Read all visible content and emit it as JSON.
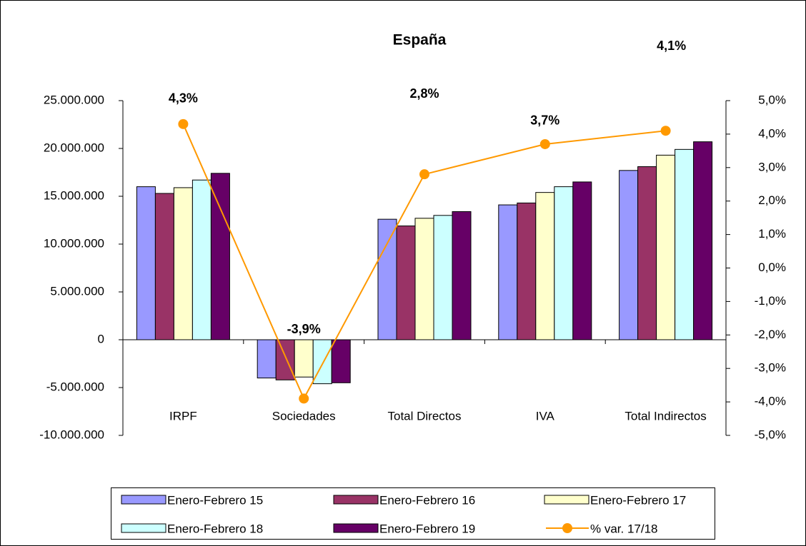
{
  "chart_data": {
    "type": "bar",
    "title": "España",
    "categories": [
      "IRPF",
      "Sociedades",
      "Total Directos",
      "IVA",
      "Total Indirectos"
    ],
    "series": [
      {
        "name": "Enero-Febrero 15",
        "color": "#9999ff",
        "values": [
          16000000,
          -4000000,
          12600000,
          14100000,
          17700000
        ]
      },
      {
        "name": "Enero-Febrero 16",
        "color": "#993366",
        "values": [
          15300000,
          -4200000,
          11900000,
          14300000,
          18100000
        ]
      },
      {
        "name": "Enero-Febrero 17",
        "color": "#ffffcc",
        "values": [
          15900000,
          -3900000,
          12700000,
          15400000,
          19300000
        ]
      },
      {
        "name": "Enero-Febrero 18",
        "color": "#ccffff",
        "values": [
          16700000,
          -4600000,
          13000000,
          16000000,
          19900000
        ]
      },
      {
        "name": "Enero-Febrero 19",
        "color": "#660066",
        "values": [
          17400000,
          -4500000,
          13400000,
          16500000,
          20700000
        ]
      },
      {
        "name": "% var. 17/18",
        "color": "#ff9900",
        "type": "line",
        "axis": "y2",
        "values": [
          4.3,
          -3.9,
          2.8,
          3.7,
          4.1
        ],
        "value_labels": [
          "4,3%",
          "-3,9%",
          "2,8%",
          "3,7%",
          "4,1%"
        ]
      }
    ],
    "ylim": [
      -10000000,
      25000000
    ],
    "yticks": [
      {
        "value": -10000000,
        "label": "-10.000.000"
      },
      {
        "value": -5000000,
        "label": "-5.000.000"
      },
      0,
      {
        "value": 5000000,
        "label": "5.000.000"
      },
      {
        "value": 10000000,
        "label": "10.000.000"
      },
      {
        "value": 15000000,
        "label": "15.000.000"
      },
      {
        "value": 20000000,
        "label": "20.000.000"
      },
      {
        "value": 25000000,
        "label": "25.000.000"
      }
    ],
    "y2lim": [
      -5,
      5
    ],
    "y2ticks": [
      {
        "value": -5,
        "label": "-5,0%"
      },
      {
        "value": -4,
        "label": "-4,0%"
      },
      {
        "value": -3,
        "label": "-3,0%"
      },
      {
        "value": -2,
        "label": "-2,0%"
      },
      {
        "value": -1,
        "label": "-1,0%"
      },
      {
        "value": 0,
        "label": "0,0%"
      },
      {
        "value": 1,
        "label": "1,0%"
      },
      {
        "value": 2,
        "label": "2,0%"
      },
      {
        "value": 3,
        "label": "3,0%"
      },
      {
        "value": 4,
        "label": "4,0%"
      },
      {
        "value": 5,
        "label": "5,0%"
      }
    ],
    "grid": false,
    "legend": "bottom"
  }
}
